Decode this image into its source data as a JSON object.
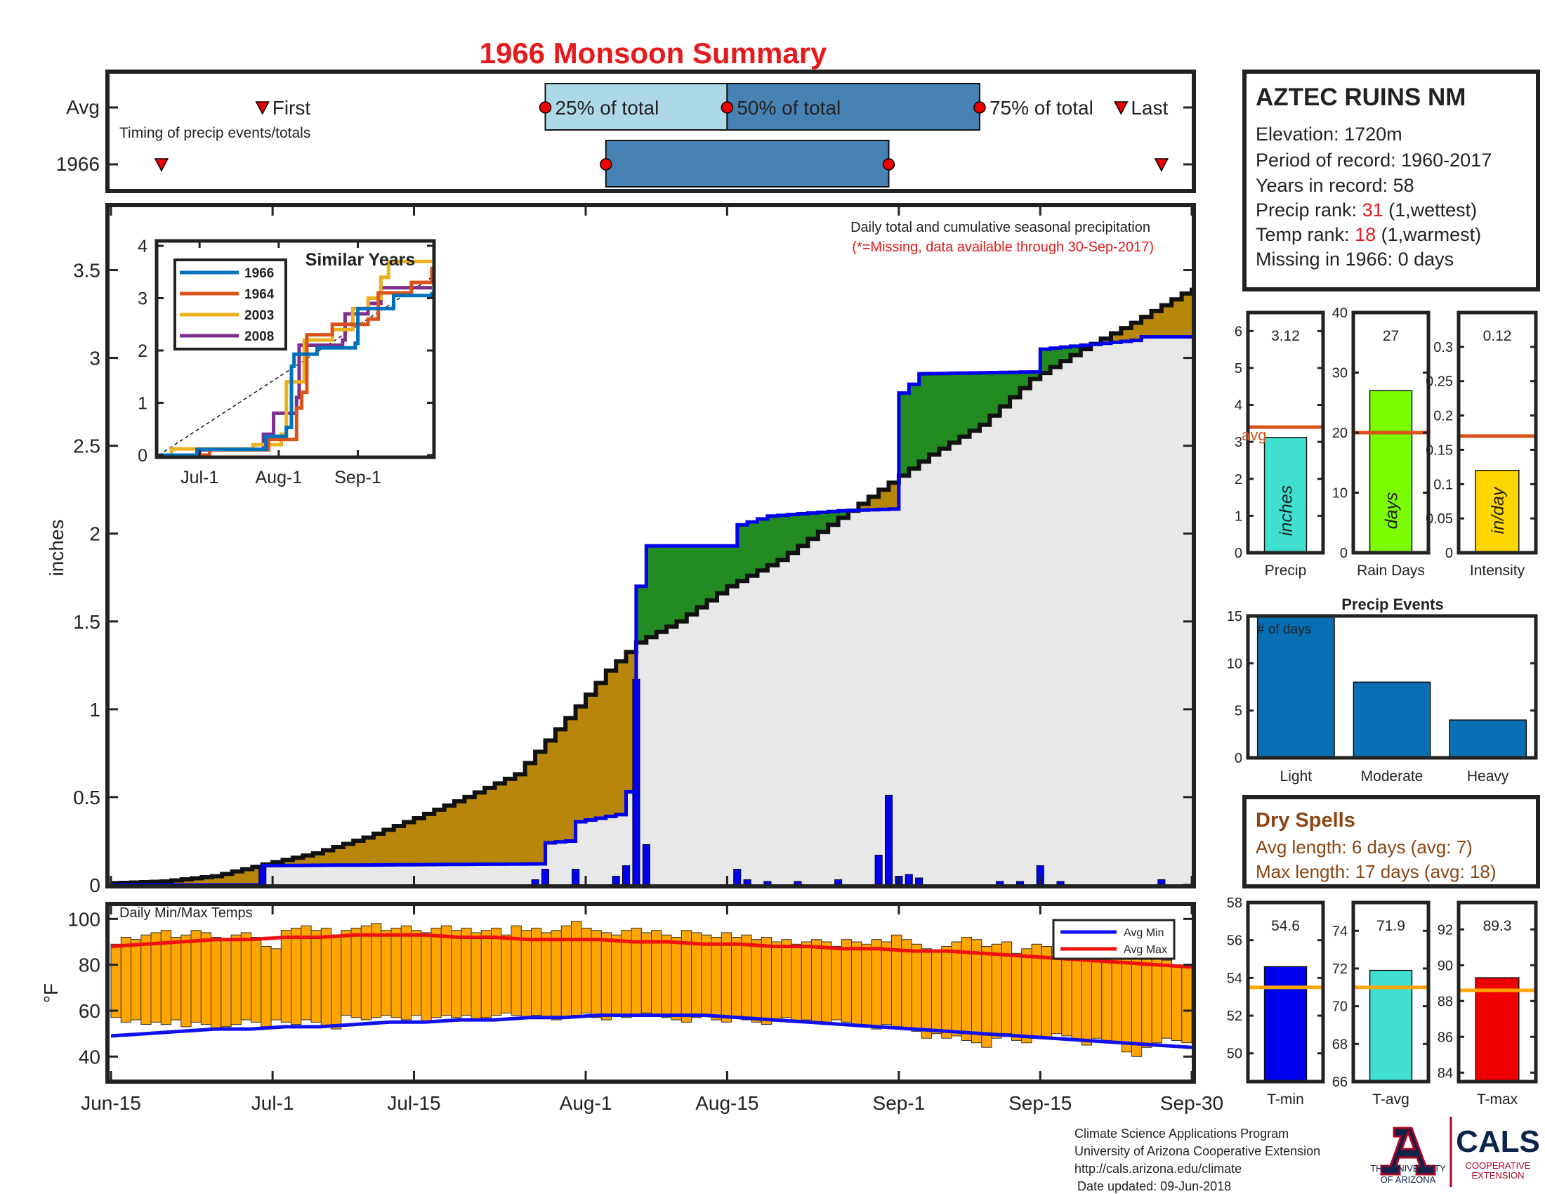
{
  "title": "1966 Monsoon Summary",
  "timing": {
    "row_labels": [
      "Avg",
      "1966"
    ],
    "caption": "Timing of precip events/totals",
    "first_label": "First",
    "last_label": "Last",
    "p25_label": "25% of total",
    "p50_label": "50% of total",
    "p75_label": "75% of total",
    "avg": {
      "first": "2018-06-30",
      "p25": "2018-07-28",
      "p50": "2018-08-15",
      "p75": "2018-09-09",
      "last": "2018-09-23"
    },
    "year": {
      "first": "2018-06-20",
      "p25": "2018-08-03",
      "p75": "2018-08-31",
      "last": "2018-09-27"
    }
  },
  "main": {
    "ylabel": "inches",
    "ylim": [
      0,
      3.85
    ],
    "yticks": [
      "0",
      "0.5",
      "1",
      "1.5",
      "2",
      "2.5",
      "3",
      "3.5"
    ],
    "xticks": [
      "Jun-15",
      "Jul-1",
      "Jul-15",
      "Aug-1",
      "Aug-15",
      "Sep-1",
      "Sep-15",
      "Sep-30"
    ],
    "note1": "Daily total and cumulative seasonal precipitation",
    "note2": "(*=Missing, data available through 30-Sep-2017)"
  },
  "similar": {
    "title": "Similar Years",
    "yticks": [
      "0",
      "1",
      "2",
      "3",
      "4"
    ],
    "xticks": [
      "Jul-1",
      "Aug-1",
      "Sep-1"
    ]
  },
  "temps": {
    "label": "Daily Min/Max Temps",
    "ylabel": "°F",
    "yticks": [
      "40",
      "60",
      "80",
      "100"
    ],
    "legend": [
      "Avg Min",
      "Avg Max"
    ]
  },
  "station": {
    "name": "AZTEC RUINS NM",
    "elevation": "Elevation: 1720m",
    "period": "Period of record: 1960-2017",
    "years": "Years in record: 58",
    "precip_rank_prefix": "Precip rank: ",
    "precip_rank": "31",
    "precip_rank_suffix": " (1,wettest)",
    "temp_rank_prefix": "Temp rank: ",
    "temp_rank": "18",
    "temp_rank_suffix": " (1,warmest)",
    "missing": "Missing in 1966: 0 days"
  },
  "dry_spells": {
    "title": "Dry Spells",
    "avg_length": "Avg length: 6 days (avg: 7)",
    "max_length": "Max length: 17 days (avg: 18)"
  },
  "events": {
    "title": "Precip Events",
    "inner_label": "# of days"
  },
  "footer": {
    "line1": "Climate Science Applications Program",
    "line2": "University of Arizona Cooperative Extension",
    "line3": "http://cals.arizona.edu/climate",
    "line4": "Date updated: 09-Jun-2018",
    "ua_line1": "THE UNIVERSITY",
    "ua_line2": "OF ARIZONA",
    "cals": "CALS",
    "cals_sub1": "COOPERATIVE",
    "cals_sub2": "EXTENSION"
  },
  "colors": {
    "title": "#e41a1c",
    "above": "#228b22",
    "below": "#b8860b",
    "avg_fill": "#e8e8e8",
    "daily": "#0000ee",
    "temp_bar": "#ffa500",
    "avg_max": "#ee1111",
    "avg_min": "#1111ee",
    "light_box": "#add8e6",
    "dark_box": "#4682b4",
    "event_bar": "#0a6eb4",
    "dry_spell_text": "#8b4513"
  },
  "chart_data": [
    {
      "id": "cumulative",
      "type": "area",
      "xlabel": "",
      "ylabel": "inches",
      "ylim": [
        0,
        3.85
      ],
      "avg_cumulative": [
        {
          "x": "2018-06-15",
          "y": 0.01
        },
        {
          "x": "2018-06-20",
          "y": 0.02
        },
        {
          "x": "2018-06-25",
          "y": 0.05
        },
        {
          "x": "2018-07-01",
          "y": 0.13
        },
        {
          "x": "2018-07-05",
          "y": 0.18
        },
        {
          "x": "2018-07-10",
          "y": 0.27
        },
        {
          "x": "2018-07-15",
          "y": 0.38
        },
        {
          "x": "2018-07-20",
          "y": 0.5
        },
        {
          "x": "2018-07-25",
          "y": 0.63
        },
        {
          "x": "2018-07-30",
          "y": 0.95
        },
        {
          "x": "2018-08-02",
          "y": 1.15
        },
        {
          "x": "2018-08-03",
          "y": 1.22
        },
        {
          "x": "2018-08-06",
          "y": 1.38
        },
        {
          "x": "2018-08-10",
          "y": 1.5
        },
        {
          "x": "2018-08-15",
          "y": 1.7
        },
        {
          "x": "2018-08-20",
          "y": 1.85
        },
        {
          "x": "2018-08-25",
          "y": 2.05
        },
        {
          "x": "2018-08-30",
          "y": 2.25
        },
        {
          "x": "2018-09-04",
          "y": 2.45
        },
        {
          "x": "2018-09-09",
          "y": 2.62
        },
        {
          "x": "2018-09-14",
          "y": 2.88
        },
        {
          "x": "2018-09-19",
          "y": 3.05
        },
        {
          "x": "2018-09-24",
          "y": 3.2
        },
        {
          "x": "2018-09-30",
          "y": 3.4
        }
      ],
      "year_cumulative": [
        {
          "x": "2018-06-15",
          "y": 0.0
        },
        {
          "x": "2018-06-29",
          "y": 0.0
        },
        {
          "x": "2018-06-30",
          "y": 0.11
        },
        {
          "x": "2018-07-27",
          "y": 0.12
        },
        {
          "x": "2018-07-28",
          "y": 0.24
        },
        {
          "x": "2018-07-30",
          "y": 0.25
        },
        {
          "x": "2018-07-31",
          "y": 0.36
        },
        {
          "x": "2018-08-04",
          "y": 0.4
        },
        {
          "x": "2018-08-05",
          "y": 0.53
        },
        {
          "x": "2018-08-06",
          "y": 1.7
        },
        {
          "x": "2018-08-07",
          "y": 1.93
        },
        {
          "x": "2018-08-15",
          "y": 1.93
        },
        {
          "x": "2018-08-16",
          "y": 2.05
        },
        {
          "x": "2018-08-19",
          "y": 2.1
        },
        {
          "x": "2018-08-26",
          "y": 2.13
        },
        {
          "x": "2018-08-31",
          "y": 2.14
        },
        {
          "x": "2018-09-01",
          "y": 2.8
        },
        {
          "x": "2018-09-02",
          "y": 2.85
        },
        {
          "x": "2018-09-03",
          "y": 2.91
        },
        {
          "x": "2018-09-14",
          "y": 2.92
        },
        {
          "x": "2018-09-15",
          "y": 3.05
        },
        {
          "x": "2018-09-24",
          "y": 3.1
        },
        {
          "x": "2018-09-25",
          "y": 3.12
        },
        {
          "x": "2018-09-30",
          "y": 3.12
        }
      ],
      "daily_precip": [
        {
          "x": "2018-06-30",
          "y": 0.11
        },
        {
          "x": "2018-07-27",
          "y": 0.03
        },
        {
          "x": "2018-07-28",
          "y": 0.09
        },
        {
          "x": "2018-07-31",
          "y": 0.09
        },
        {
          "x": "2018-08-04",
          "y": 0.05
        },
        {
          "x": "2018-08-05",
          "y": 0.11
        },
        {
          "x": "2018-08-06",
          "y": 1.17
        },
        {
          "x": "2018-08-07",
          "y": 0.23
        },
        {
          "x": "2018-08-16",
          "y": 0.09
        },
        {
          "x": "2018-08-17",
          "y": 0.03
        },
        {
          "x": "2018-08-19",
          "y": 0.02
        },
        {
          "x": "2018-08-22",
          "y": 0.02
        },
        {
          "x": "2018-08-26",
          "y": 0.03
        },
        {
          "x": "2018-08-30",
          "y": 0.17
        },
        {
          "x": "2018-08-31",
          "y": 0.51
        },
        {
          "x": "2018-09-01",
          "y": 0.05
        },
        {
          "x": "2018-09-02",
          "y": 0.06
        },
        {
          "x": "2018-09-03",
          "y": 0.04
        },
        {
          "x": "2018-09-11",
          "y": 0.02
        },
        {
          "x": "2018-09-13",
          "y": 0.02
        },
        {
          "x": "2018-09-15",
          "y": 0.11
        },
        {
          "x": "2018-09-17",
          "y": 0.02
        },
        {
          "x": "2018-09-27",
          "y": 0.03
        }
      ]
    },
    {
      "id": "similar_years",
      "type": "line",
      "title": "Similar Years",
      "ylim": [
        0,
        4
      ],
      "series": [
        {
          "name": "1966",
          "color": "#0072bd",
          "points": [
            {
              "x": "2018-06-15",
              "y": 0
            },
            {
              "x": "2018-06-30",
              "y": 0.11
            },
            {
              "x": "2018-07-27",
              "y": 0.36
            },
            {
              "x": "2018-08-04",
              "y": 0.53
            },
            {
              "x": "2018-08-06",
              "y": 1.7
            },
            {
              "x": "2018-08-07",
              "y": 1.93
            },
            {
              "x": "2018-08-16",
              "y": 2.05
            },
            {
              "x": "2018-08-31",
              "y": 2.14
            },
            {
              "x": "2018-09-01",
              "y": 2.8
            },
            {
              "x": "2018-09-15",
              "y": 3.05
            },
            {
              "x": "2018-09-30",
              "y": 3.12
            }
          ]
        },
        {
          "name": "1964",
          "color": "#d95319",
          "points": [
            {
              "x": "2018-06-15",
              "y": 0
            },
            {
              "x": "2018-07-05",
              "y": 0.1
            },
            {
              "x": "2018-07-28",
              "y": 0.3
            },
            {
              "x": "2018-08-08",
              "y": 0.9
            },
            {
              "x": "2018-08-10",
              "y": 1.2
            },
            {
              "x": "2018-08-12",
              "y": 2.3
            },
            {
              "x": "2018-08-22",
              "y": 2.5
            },
            {
              "x": "2018-09-05",
              "y": 2.6
            },
            {
              "x": "2018-09-09",
              "y": 3.1
            },
            {
              "x": "2018-09-22",
              "y": 3.3
            },
            {
              "x": "2018-09-30",
              "y": 3.6
            }
          ]
        },
        {
          "name": "2003",
          "color": "#edb120",
          "points": [
            {
              "x": "2018-06-15",
              "y": 0
            },
            {
              "x": "2018-06-20",
              "y": 0.12
            },
            {
              "x": "2018-07-22",
              "y": 0.2
            },
            {
              "x": "2018-08-02",
              "y": 0.4
            },
            {
              "x": "2018-08-04",
              "y": 1.4
            },
            {
              "x": "2018-08-11",
              "y": 2.2
            },
            {
              "x": "2018-08-22",
              "y": 2.4
            },
            {
              "x": "2018-08-30",
              "y": 2.8
            },
            {
              "x": "2018-09-05",
              "y": 3.0
            },
            {
              "x": "2018-09-10",
              "y": 3.4
            },
            {
              "x": "2018-09-13",
              "y": 3.7
            },
            {
              "x": "2018-09-30",
              "y": 3.7
            }
          ]
        },
        {
          "name": "2008",
          "color": "#7e2f8e",
          "points": [
            {
              "x": "2018-06-15",
              "y": 0
            },
            {
              "x": "2018-07-01",
              "y": 0.1
            },
            {
              "x": "2018-07-26",
              "y": 0.4
            },
            {
              "x": "2018-07-30",
              "y": 0.8
            },
            {
              "x": "2018-08-08",
              "y": 1.1
            },
            {
              "x": "2018-08-09",
              "y": 2.1
            },
            {
              "x": "2018-08-26",
              "y": 2.2
            },
            {
              "x": "2018-08-27",
              "y": 2.7
            },
            {
              "x": "2018-09-05",
              "y": 2.9
            },
            {
              "x": "2018-09-10",
              "y": 3.2
            },
            {
              "x": "2018-09-30",
              "y": 3.2
            }
          ]
        }
      ],
      "avg_line": [
        {
          "x": "2018-06-15",
          "y": 0
        },
        {
          "x": "2018-09-30",
          "y": 3.4
        }
      ]
    },
    {
      "id": "temps",
      "type": "bar",
      "ylabel": "°F",
      "ylim": [
        30,
        105
      ],
      "start": "2018-06-15",
      "daily_min": [
        57,
        55,
        56,
        54,
        55,
        54,
        56,
        53,
        55,
        54,
        52,
        53,
        54,
        56,
        55,
        53,
        56,
        55,
        54,
        56,
        55,
        53,
        52,
        58,
        57,
        56,
        57,
        58,
        57,
        56,
        58,
        55,
        57,
        58,
        57,
        58,
        56,
        57,
        58,
        59,
        58,
        57,
        58,
        57,
        56,
        57,
        58,
        59,
        57,
        56,
        58,
        57,
        58,
        59,
        58,
        57,
        56,
        55,
        57,
        58,
        56,
        55,
        57,
        56,
        55,
        54,
        56,
        57,
        55,
        56,
        55,
        54,
        56,
        55,
        54,
        53,
        52,
        54,
        53,
        52,
        51,
        48,
        50,
        48,
        49,
        47,
        46,
        44,
        48,
        50,
        47,
        46,
        49,
        48,
        50,
        49,
        47,
        45,
        48,
        47,
        46,
        42,
        40,
        44,
        46,
        48,
        47,
        46
      ],
      "daily_max": [
        89,
        92,
        91,
        93,
        94,
        95,
        92,
        93,
        95,
        94,
        92,
        91,
        93,
        94,
        92,
        88,
        87,
        95,
        96,
        97,
        95,
        96,
        93,
        95,
        96,
        97,
        98,
        95,
        96,
        97,
        95,
        94,
        96,
        97,
        95,
        96,
        94,
        95,
        96,
        93,
        97,
        95,
        96,
        94,
        95,
        97,
        99,
        96,
        95,
        94,
        93,
        95,
        96,
        94,
        95,
        93,
        92,
        95,
        94,
        93,
        92,
        94,
        92,
        93,
        91,
        92,
        90,
        91,
        89,
        90,
        91,
        90,
        88,
        91,
        90,
        89,
        91,
        90,
        93,
        91,
        89,
        87,
        86,
        88,
        90,
        92,
        91,
        88,
        89,
        90,
        85,
        87,
        89,
        88,
        86,
        87,
        88,
        85,
        84,
        88,
        87,
        86,
        85,
        84,
        83,
        82,
        80,
        79
      ],
      "avg_min": [
        49,
        50,
        51,
        52,
        52,
        53,
        53,
        54,
        55,
        55,
        56,
        56,
        57,
        57,
        58,
        58,
        58,
        58,
        57,
        56,
        55,
        54,
        53,
        52,
        51,
        50,
        49,
        48,
        47,
        46,
        45,
        44
      ],
      "avg_max": [
        88,
        89,
        90,
        91,
        91,
        92,
        92,
        93,
        93,
        93,
        92,
        92,
        91,
        91,
        91,
        90,
        90,
        89,
        89,
        88,
        88,
        87,
        87,
        86,
        86,
        85,
        84,
        83,
        82,
        81,
        80,
        79
      ]
    },
    {
      "id": "precip_total",
      "type": "bar",
      "categories": [
        "Precip"
      ],
      "values": [
        3.12
      ],
      "avg": 3.4,
      "ylim": [
        0,
        6.5
      ],
      "unit": "inches",
      "xlabel": "Precip",
      "yticks": [
        "0",
        "1",
        "2",
        "3",
        "4",
        "5",
        "6"
      ]
    },
    {
      "id": "rain_days",
      "type": "bar",
      "categories": [
        "Rain Days"
      ],
      "values": [
        27
      ],
      "avg": 20,
      "ylim": [
        0,
        40
      ],
      "unit": "days",
      "xlabel": "Rain Days",
      "yticks": [
        "0",
        "10",
        "20",
        "30",
        "40"
      ]
    },
    {
      "id": "intensity",
      "type": "bar",
      "categories": [
        "Intensity"
      ],
      "values": [
        0.12
      ],
      "avg": 0.17,
      "ylim": [
        0,
        0.35
      ],
      "unit": "in/day",
      "xlabel": "Intensity",
      "yticks": [
        "0",
        "0.05",
        "0.1",
        "0.15",
        "0.2",
        "0.25",
        "0.3"
      ]
    },
    {
      "id": "precip_events",
      "type": "bar",
      "title": "Precip Events",
      "categories": [
        "Light",
        "Moderate",
        "Heavy"
      ],
      "values": [
        15,
        8,
        4
      ],
      "ylim": [
        0,
        15
      ],
      "yticks": [
        "0",
        "5",
        "10",
        "15"
      ]
    },
    {
      "id": "tmin",
      "type": "bar",
      "categories": [
        "T-min"
      ],
      "values": [
        54.6
      ],
      "avg": 53.5,
      "ylim": [
        48.5,
        58
      ],
      "xlabel": "T-min",
      "yticks": [
        "50",
        "52",
        "54",
        "56",
        "58"
      ]
    },
    {
      "id": "tavg",
      "type": "bar",
      "categories": [
        "T-avg"
      ],
      "values": [
        71.9
      ],
      "avg": 71.0,
      "ylim": [
        66,
        75.5
      ],
      "xlabel": "T-avg",
      "yticks": [
        "66",
        "68",
        "70",
        "72",
        "74"
      ]
    },
    {
      "id": "tmax",
      "type": "bar",
      "categories": [
        "T-max"
      ],
      "values": [
        89.3
      ],
      "avg": 88.6,
      "ylim": [
        83.5,
        93.5
      ],
      "xlabel": "T-max",
      "yticks": [
        "84",
        "86",
        "88",
        "90",
        "92"
      ]
    }
  ]
}
